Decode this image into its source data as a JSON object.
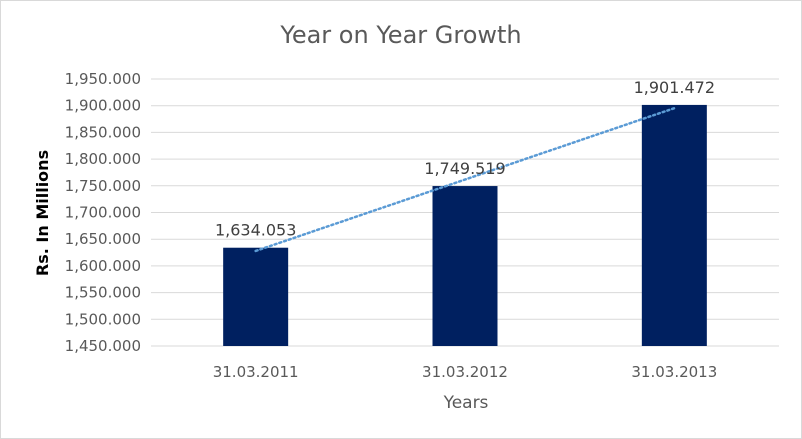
{
  "chart_data": {
    "type": "bar",
    "title": "Year on Year Growth",
    "xlabel": "Years",
    "ylabel": "Rs. In Millions",
    "categories": [
      "31.03.2011",
      "31.03.2012",
      "31.03.2013"
    ],
    "values": [
      1634.053,
      1749.519,
      1901.472
    ],
    "value_labels": [
      "1,634.053",
      "1,749.519",
      "1,901.472"
    ],
    "ylim": [
      1450,
      1950
    ],
    "yticks": [
      1450,
      1500,
      1550,
      1600,
      1650,
      1700,
      1750,
      1800,
      1850,
      1900,
      1950
    ],
    "ytick_labels": [
      "1,450.000",
      "1,500.000",
      "1,550.000",
      "1,600.000",
      "1,650.000",
      "1,700.000",
      "1,750.000",
      "1,800.000",
      "1,850.000",
      "1,900.000",
      "1,950.000"
    ],
    "trendline": "linear",
    "grid": true,
    "legend": "none",
    "colors": {
      "bar": "#002060",
      "trendline": "#5b9bd5",
      "grid": "#d9d9d9",
      "text": "#595959"
    }
  }
}
